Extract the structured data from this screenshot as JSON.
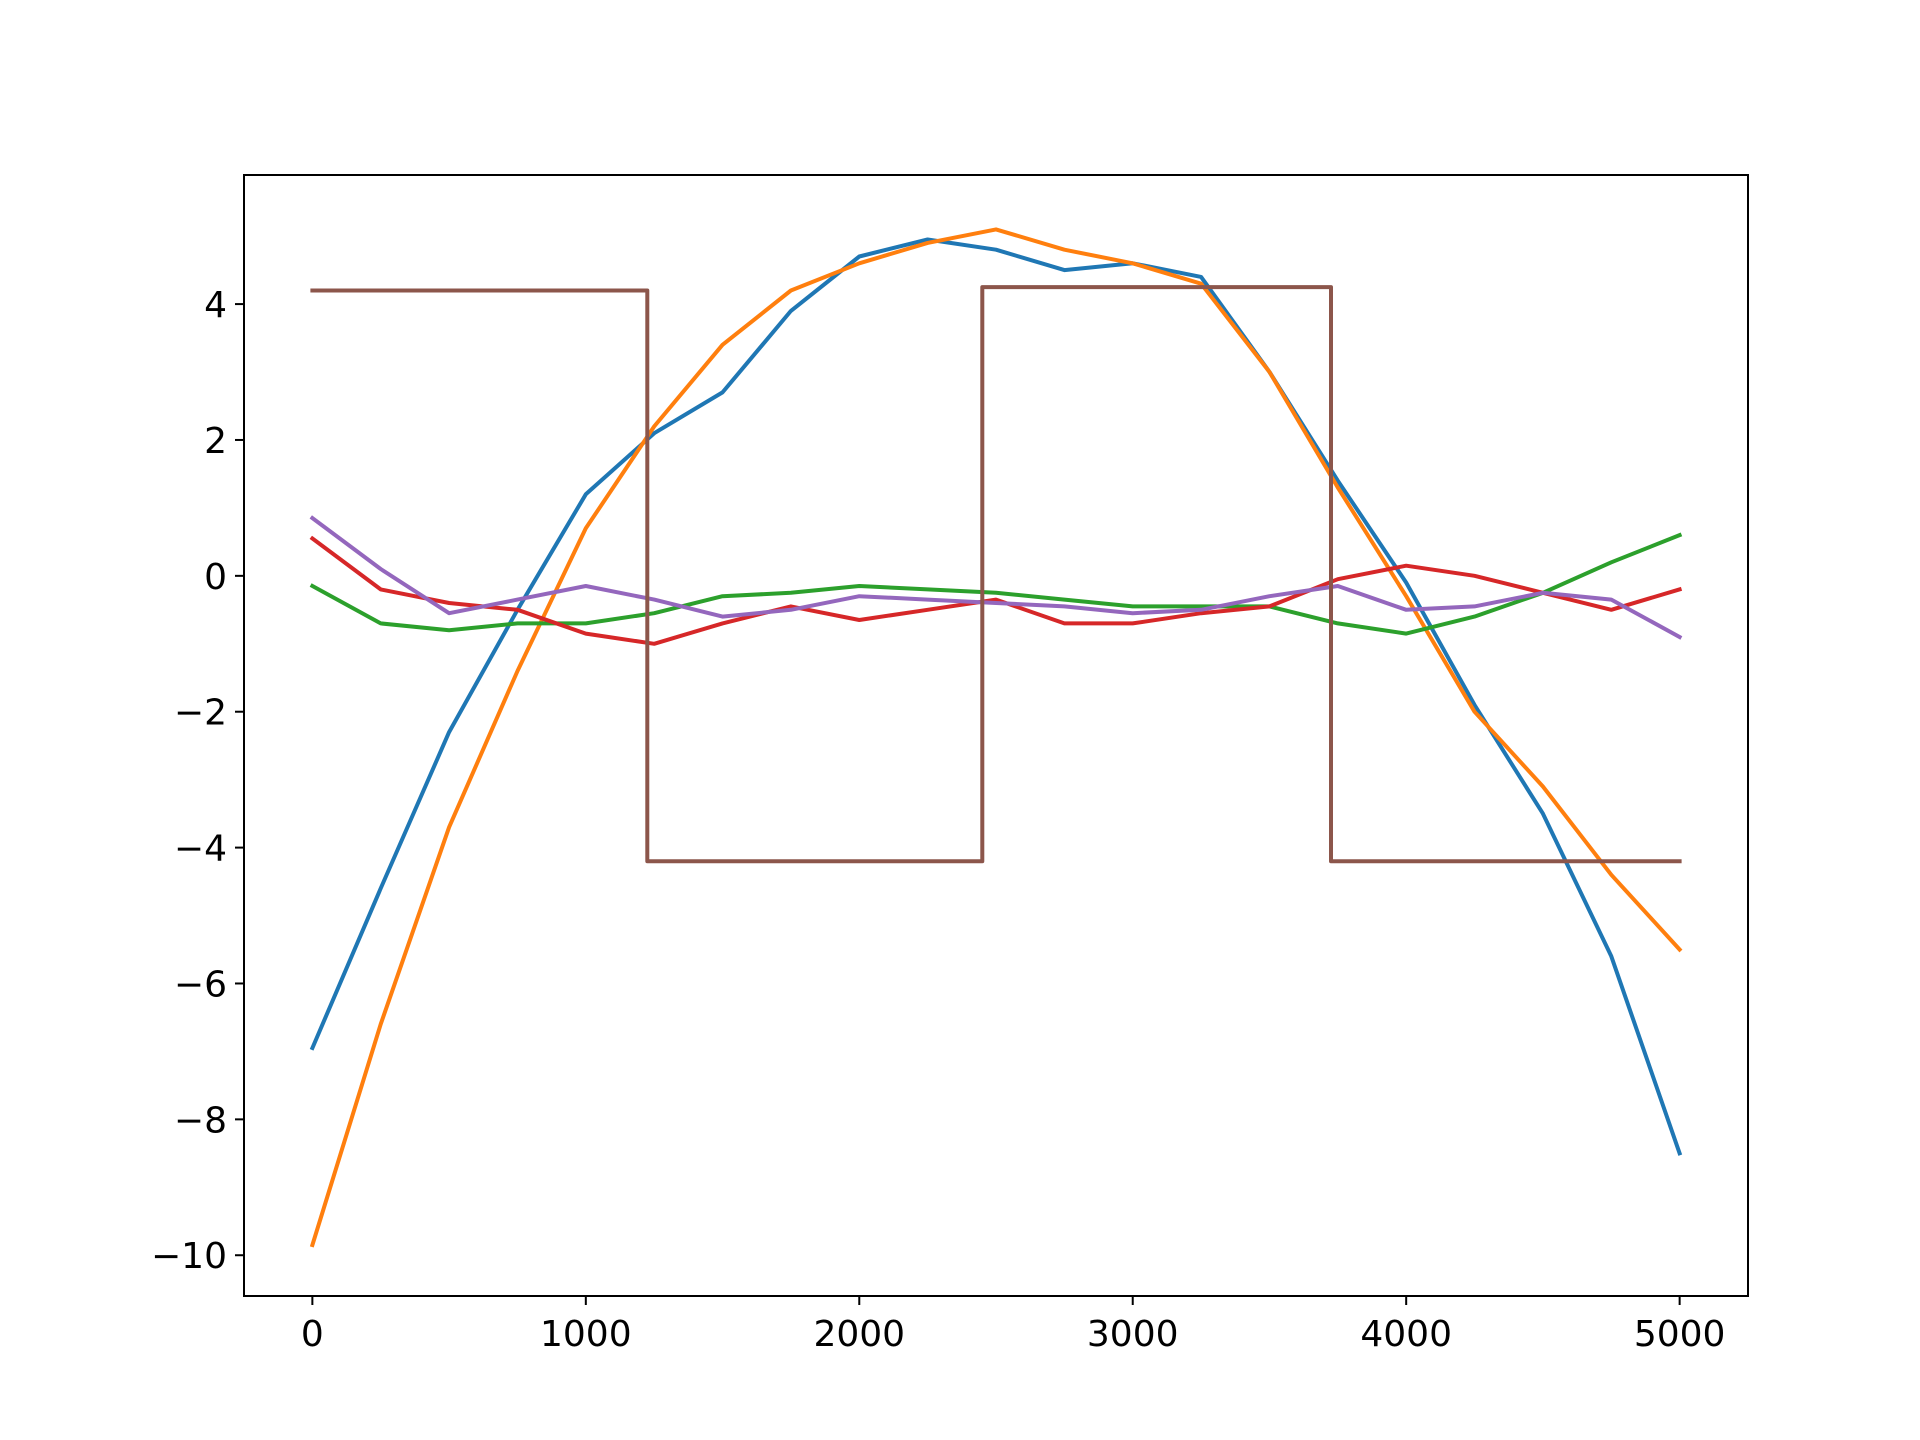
{
  "chart_data": {
    "type": "line",
    "title": "",
    "xlabel": "",
    "ylabel": "",
    "xlim": [
      -250,
      5250
    ],
    "ylim": [
      -10.6,
      5.9
    ],
    "grid": false,
    "legend": "none",
    "x_ticks": [
      0,
      1000,
      2000,
      3000,
      4000,
      5000
    ],
    "x_tick_labels": [
      "0",
      "1000",
      "2000",
      "3000",
      "4000",
      "5000"
    ],
    "y_ticks": [
      -10,
      -8,
      -6,
      -4,
      -2,
      0,
      2,
      4
    ],
    "y_tick_labels": [
      "−10",
      "−8",
      "−6",
      "−4",
      "−2",
      "0",
      "2",
      "4"
    ],
    "series": [
      {
        "color": "#1f77b4",
        "x": [
          0,
          250,
          500,
          750,
          1000,
          1250,
          1500,
          1750,
          2000,
          2250,
          2500,
          2750,
          3000,
          3250,
          3500,
          3750,
          4000,
          4250,
          4500,
          4750,
          5000
        ],
        "y": [
          -6.95,
          -4.6,
          -2.3,
          -0.5,
          1.2,
          2.1,
          2.7,
          3.9,
          4.7,
          4.95,
          4.8,
          4.5,
          4.6,
          4.4,
          3.0,
          1.4,
          -0.1,
          -1.9,
          -3.5,
          -5.6,
          -8.5
        ]
      },
      {
        "color": "#ff7f0e",
        "x": [
          0,
          250,
          500,
          750,
          1000,
          1250,
          1500,
          1750,
          2000,
          2250,
          2500,
          2750,
          3000,
          3250,
          3500,
          3750,
          4000,
          4250,
          4500,
          4750,
          5000
        ],
        "y": [
          -9.85,
          -6.6,
          -3.7,
          -1.4,
          0.7,
          2.2,
          3.4,
          4.2,
          4.6,
          4.9,
          5.1,
          4.8,
          4.6,
          4.3,
          3.0,
          1.3,
          -0.3,
          -2.0,
          -3.1,
          -4.4,
          -5.5
        ]
      },
      {
        "color": "#2ca02c",
        "x": [
          0,
          250,
          500,
          750,
          1000,
          1250,
          1500,
          1750,
          2000,
          2250,
          2500,
          2750,
          3000,
          3250,
          3500,
          3750,
          4000,
          4250,
          4500,
          4750,
          5000
        ],
        "y": [
          -0.15,
          -0.7,
          -0.8,
          -0.7,
          -0.7,
          -0.55,
          -0.3,
          -0.25,
          -0.15,
          -0.2,
          -0.25,
          -0.35,
          -0.45,
          -0.45,
          -0.45,
          -0.7,
          -0.85,
          -0.6,
          -0.25,
          0.2,
          0.6
        ]
      },
      {
        "color": "#d62728",
        "x": [
          0,
          250,
          500,
          750,
          1000,
          1250,
          1500,
          1750,
          2000,
          2250,
          2500,
          2750,
          3000,
          3250,
          3500,
          3750,
          4000,
          4250,
          4500,
          4750,
          5000
        ],
        "y": [
          0.55,
          -0.2,
          -0.4,
          -0.5,
          -0.85,
          -1.0,
          -0.7,
          -0.45,
          -0.65,
          -0.5,
          -0.35,
          -0.7,
          -0.7,
          -0.55,
          -0.45,
          -0.05,
          0.15,
          0.0,
          -0.25,
          -0.5,
          -0.2
        ]
      },
      {
        "color": "#9467bd",
        "x": [
          0,
          250,
          500,
          750,
          1000,
          1250,
          1500,
          1750,
          2000,
          2250,
          2500,
          2750,
          3000,
          3250,
          3500,
          3750,
          4000,
          4250,
          4500,
          4750,
          5000
        ],
        "y": [
          0.85,
          0.1,
          -0.55,
          -0.35,
          -0.15,
          -0.35,
          -0.6,
          -0.5,
          -0.3,
          -0.35,
          -0.4,
          -0.45,
          -0.55,
          -0.5,
          -0.3,
          -0.15,
          -0.5,
          -0.45,
          -0.25,
          -0.35,
          -0.9
        ]
      },
      {
        "color": "#8c564b",
        "step": true,
        "x": [
          0,
          1225,
          1225,
          2450,
          2450,
          3725,
          3725,
          5000
        ],
        "y": [
          4.2,
          4.2,
          -4.2,
          -4.2,
          4.25,
          4.25,
          -4.2,
          -4.2
        ]
      }
    ]
  }
}
